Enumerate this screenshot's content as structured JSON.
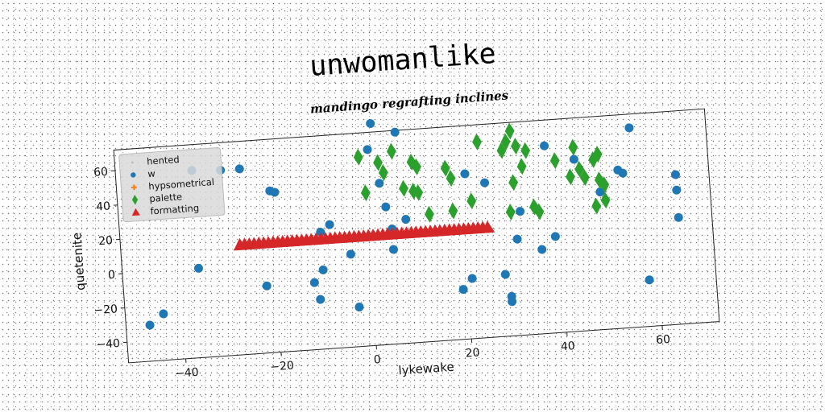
{
  "chart_data": {
    "type": "scatter",
    "title": "unwomanlike",
    "subtitle": "mandingo regrafting inclines",
    "xlabel": "lykewake",
    "ylabel": "quetenite",
    "xlim": [
      -52,
      72
    ],
    "ylim": [
      -52,
      72
    ],
    "xticks": [
      -40,
      -20,
      0,
      20,
      40,
      60
    ],
    "yticks": [
      -40,
      -20,
      0,
      20,
      40,
      60
    ],
    "grid": false,
    "legend_position": "top-left",
    "series": [
      {
        "name": "hented",
        "marker": "dot",
        "color": "#bbbbbb",
        "points": []
      },
      {
        "name": "w",
        "marker": "circle",
        "color": "#1f77b4",
        "points": [
          [
            -47,
            -31
          ],
          [
            -44,
            -25
          ],
          [
            -36,
            0
          ],
          [
            -36,
            57
          ],
          [
            -30,
            56
          ],
          [
            -26,
            56
          ],
          [
            -22,
            -13
          ],
          [
            -20,
            42
          ],
          [
            -19,
            41
          ],
          [
            -12,
            -13
          ],
          [
            -11,
            -23
          ],
          [
            -10,
            -6
          ],
          [
            -10,
            16
          ],
          [
            -8,
            20
          ],
          [
            -4,
            2
          ],
          [
            -3,
            -29
          ],
          [
            1,
            62
          ],
          [
            2,
            77
          ],
          [
            3,
            42
          ],
          [
            4,
            28
          ],
          [
            5,
            3
          ],
          [
            5,
            15
          ],
          [
            7,
            71
          ],
          [
            8,
            20
          ],
          [
            21,
            44
          ],
          [
            21,
            -17
          ],
          [
            19,
            -23
          ],
          [
            25,
            38
          ],
          [
            28,
            -16
          ],
          [
            29,
            -29
          ],
          [
            29,
            -32
          ],
          [
            31,
            4
          ],
          [
            32,
            20
          ],
          [
            36,
            -3
          ],
          [
            38,
            57
          ],
          [
            39,
            4
          ],
          [
            44,
            48
          ],
          [
            49,
            28
          ],
          [
            53,
            40
          ],
          [
            54,
            38
          ],
          [
            56,
            64
          ],
          [
            58,
            -25
          ],
          [
            65,
            35
          ],
          [
            65,
            26
          ],
          [
            65,
            10
          ]
        ]
      },
      {
        "name": "hypsometrical",
        "marker": "plus",
        "color": "#ff7f0e",
        "points": [
          [
            0,
            13
          ],
          [
            6,
            12
          ],
          [
            12,
            12
          ],
          [
            18,
            12
          ],
          [
            22,
            12
          ]
        ]
      },
      {
        "name": "palette",
        "marker": "diamond",
        "color": "#2ca02c",
        "points": [
          [
            -1,
            58
          ],
          [
            0,
            37
          ],
          [
            3,
            54
          ],
          [
            4,
            48
          ],
          [
            6,
            60
          ],
          [
            8,
            38
          ],
          [
            10,
            53
          ],
          [
            11,
            50
          ],
          [
            10,
            36
          ],
          [
            11,
            35
          ],
          [
            13,
            22
          ],
          [
            17,
            48
          ],
          [
            18,
            42
          ],
          [
            18,
            23
          ],
          [
            22,
            28
          ],
          [
            24,
            62
          ],
          [
            29,
            56
          ],
          [
            30,
            61
          ],
          [
            31,
            67
          ],
          [
            32,
            58
          ],
          [
            34,
            55
          ],
          [
            33,
            46
          ],
          [
            31,
            37
          ],
          [
            30,
            20
          ],
          [
            35,
            22
          ],
          [
            36,
            19
          ],
          [
            40,
            48
          ],
          [
            43,
            38
          ],
          [
            44,
            55
          ],
          [
            45,
            42
          ],
          [
            46,
            37
          ],
          [
            48,
            47
          ],
          [
            49,
            50
          ],
          [
            49,
            35
          ],
          [
            50,
            32
          ],
          [
            48,
            20
          ],
          [
            50,
            23
          ]
        ]
      },
      {
        "name": "formatting",
        "marker": "triangle",
        "color": "#d62728",
        "points": [
          [
            -27,
            12
          ],
          [
            -26,
            12
          ],
          [
            -25,
            12
          ],
          [
            -24,
            12
          ],
          [
            -23,
            12
          ],
          [
            -22,
            12
          ],
          [
            -21,
            12
          ],
          [
            -20,
            12
          ],
          [
            -19,
            12
          ],
          [
            -18,
            12
          ],
          [
            -17,
            12
          ],
          [
            -16,
            12
          ],
          [
            -15,
            12
          ],
          [
            -14,
            12
          ],
          [
            -13,
            12
          ],
          [
            -12,
            12
          ],
          [
            -11,
            12
          ],
          [
            -10,
            12
          ],
          [
            -9,
            12
          ],
          [
            -8,
            12
          ],
          [
            -7,
            12
          ],
          [
            -6,
            12
          ],
          [
            -5,
            12
          ],
          [
            -4,
            12
          ],
          [
            -3,
            12
          ],
          [
            -2,
            12
          ],
          [
            -1,
            12
          ],
          [
            0,
            12
          ],
          [
            1,
            12
          ],
          [
            2,
            12
          ],
          [
            3,
            12
          ],
          [
            4,
            12
          ],
          [
            5,
            12
          ],
          [
            6,
            12
          ],
          [
            7,
            12
          ],
          [
            8,
            12
          ],
          [
            9,
            12
          ],
          [
            10,
            12
          ],
          [
            11,
            12
          ],
          [
            12,
            12
          ],
          [
            13,
            12
          ],
          [
            14,
            12
          ],
          [
            15,
            12
          ],
          [
            16,
            12
          ],
          [
            17,
            12
          ],
          [
            18,
            12
          ],
          [
            19,
            12
          ],
          [
            20,
            12
          ],
          [
            21,
            12
          ],
          [
            22,
            12
          ],
          [
            23,
            12
          ],
          [
            24,
            12
          ],
          [
            25,
            12
          ]
        ]
      }
    ]
  }
}
